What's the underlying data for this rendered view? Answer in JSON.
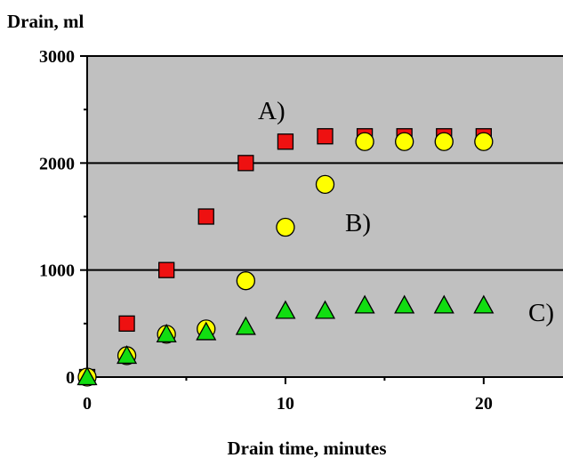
{
  "chart_data": {
    "type": "scatter",
    "title": "",
    "xlabel": "Drain time, minutes",
    "ylabel": "Drain, ml",
    "xlim": [
      0,
      24
    ],
    "ylim": [
      0,
      3000
    ],
    "xticks": [
      0,
      10,
      20
    ],
    "yticks": [
      0,
      1000,
      2000,
      3000
    ],
    "grid": "horizontal",
    "background": "#c0c0c0",
    "series": [
      {
        "label": "A)",
        "marker": "square",
        "color": "#ee1111",
        "x": [
          0,
          2,
          4,
          6,
          8,
          10,
          12,
          14,
          16,
          18,
          20
        ],
        "y": [
          0,
          500,
          1000,
          1500,
          2000,
          2200,
          2250,
          2250,
          2250,
          2250,
          2250
        ]
      },
      {
        "label": "B)",
        "marker": "circle",
        "color": "#ffff00",
        "x": [
          0,
          2,
          4,
          6,
          8,
          10,
          12,
          14,
          16,
          18,
          20
        ],
        "y": [
          0,
          200,
          400,
          450,
          900,
          1400,
          1800,
          2200,
          2200,
          2200,
          2200
        ]
      },
      {
        "label": "C)",
        "marker": "triangle",
        "color": "#11dd11",
        "x": [
          0,
          2,
          4,
          6,
          8,
          10,
          12,
          14,
          16,
          18,
          20
        ],
        "y": [
          0,
          200,
          400,
          420,
          470,
          620,
          620,
          670,
          670,
          670,
          670
        ]
      }
    ]
  }
}
